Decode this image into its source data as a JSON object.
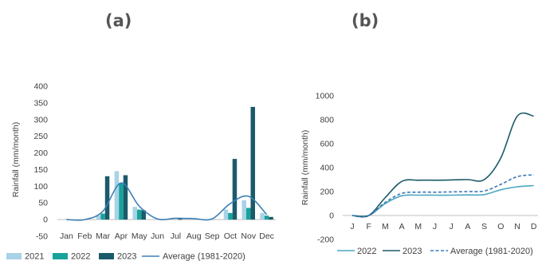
{
  "panels": {
    "a_label": "(a)",
    "b_label": "(b)"
  },
  "chart_data": [
    {
      "type": "bar",
      "panel": "(a)",
      "categories": [
        "Jan",
        "Feb",
        "Mar",
        "Apr",
        "May",
        "Jun",
        "Jul",
        "Aug",
        "Sep",
        "Oct",
        "Nov",
        "Dec"
      ],
      "series": [
        {
          "name": "2021",
          "kind": "bar",
          "color": "#a8d2e6",
          "values": [
            0,
            0,
            12,
            145,
            38,
            0,
            0,
            0,
            0,
            30,
            58,
            20
          ]
        },
        {
          "name": "2022",
          "kind": "bar",
          "color": "#17a39b",
          "values": [
            0,
            0,
            18,
            110,
            30,
            0,
            0,
            0,
            0,
            20,
            35,
            12
          ]
        },
        {
          "name": "2023",
          "kind": "bar",
          "color": "#1b5a6a",
          "values": [
            0,
            0,
            130,
            133,
            28,
            0,
            3,
            0,
            0,
            182,
            338,
            8
          ]
        },
        {
          "name": "Average (1981-2020)",
          "kind": "line",
          "color": "#3d7fb5",
          "values": [
            0,
            0,
            25,
            110,
            40,
            2,
            4,
            3,
            2,
            48,
            70,
            15
          ]
        }
      ],
      "ylabel": "Rainfall (mm/month)",
      "xlabel": "",
      "ylim": [
        -50,
        400
      ],
      "yticks": [
        -50,
        0,
        50,
        100,
        150,
        200,
        250,
        300,
        350,
        400
      ],
      "grid": false,
      "legend": "bottom"
    },
    {
      "type": "line",
      "panel": "(b)",
      "categories": [
        "J",
        "F",
        "M",
        "A",
        "M",
        "J",
        "J",
        "A",
        "S",
        "O",
        "N",
        "D"
      ],
      "series": [
        {
          "name": "2022",
          "style": "solid",
          "color": "#4da6bf",
          "values": [
            0,
            0,
            100,
            165,
            170,
            170,
            170,
            172,
            175,
            215,
            240,
            250
          ]
        },
        {
          "name": "2023",
          "style": "solid",
          "color": "#1b5a6a",
          "values": [
            0,
            0,
            150,
            285,
            295,
            295,
            297,
            300,
            300,
            480,
            830,
            830
          ]
        },
        {
          "name": "Average (1981-2020)",
          "style": "dashed",
          "color": "#3a78b8",
          "values": [
            0,
            0,
            110,
            185,
            195,
            195,
            197,
            200,
            205,
            260,
            325,
            340
          ]
        }
      ],
      "ylabel": "Rainfall (mm/month)",
      "xlabel": "",
      "ylim": [
        -200,
        1000
      ],
      "yticks": [
        -200,
        0,
        200,
        400,
        600,
        800,
        1000
      ],
      "grid": false,
      "legend": "bottom"
    }
  ]
}
